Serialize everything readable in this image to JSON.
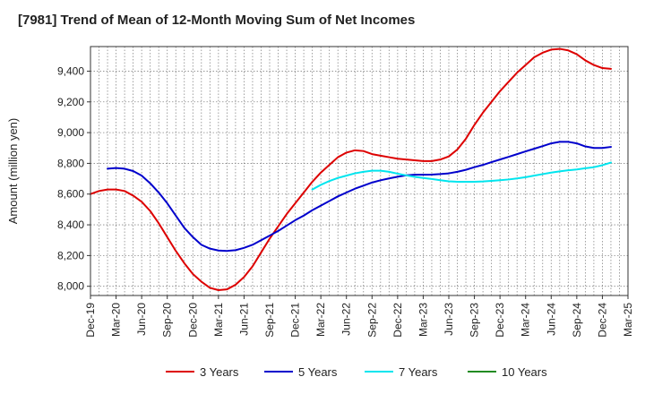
{
  "chart_data": {
    "type": "line",
    "title": "[7981]  Trend of Mean of 12-Month Moving Sum of Net Incomes",
    "ylabel": "Amount (million yen)",
    "xlabel": "",
    "ylim": [
      7940,
      9560
    ],
    "yticks": [
      8000,
      8200,
      8400,
      8600,
      8800,
      9000,
      9200,
      9400
    ],
    "ytick_labels": [
      "8,000",
      "8,200",
      "8,400",
      "8,600",
      "8,800",
      "9,000",
      "9,200",
      "9,400"
    ],
    "xticks": [
      "Dec-19",
      "Mar-20",
      "Jun-20",
      "Sep-20",
      "Dec-20",
      "Mar-21",
      "Jun-21",
      "Sep-21",
      "Dec-21",
      "Mar-22",
      "Jun-22",
      "Sep-22",
      "Dec-22",
      "Mar-23",
      "Jun-23",
      "Sep-23",
      "Dec-23",
      "Mar-24",
      "Jun-24",
      "Sep-24",
      "Dec-24",
      "Mar-25"
    ],
    "grid": true,
    "legend_position": "bottom",
    "series": [
      {
        "name": "3 Years",
        "color": "#dd0000",
        "points": [
          [
            "2019-12",
            8600
          ],
          [
            "2020-01",
            8620
          ],
          [
            "2020-02",
            8630
          ],
          [
            "2020-03",
            8630
          ],
          [
            "2020-04",
            8620
          ],
          [
            "2020-05",
            8590
          ],
          [
            "2020-06",
            8550
          ],
          [
            "2020-07",
            8490
          ],
          [
            "2020-08",
            8410
          ],
          [
            "2020-09",
            8320
          ],
          [
            "2020-10",
            8230
          ],
          [
            "2020-11",
            8150
          ],
          [
            "2020-12",
            8080
          ],
          [
            "2021-01",
            8030
          ],
          [
            "2021-02",
            7990
          ],
          [
            "2021-03",
            7975
          ],
          [
            "2021-04",
            7980
          ],
          [
            "2021-05",
            8010
          ],
          [
            "2021-06",
            8060
          ],
          [
            "2021-07",
            8130
          ],
          [
            "2021-08",
            8220
          ],
          [
            "2021-09",
            8310
          ],
          [
            "2021-10",
            8390
          ],
          [
            "2021-11",
            8470
          ],
          [
            "2021-12",
            8540
          ],
          [
            "2022-01",
            8610
          ],
          [
            "2022-02",
            8680
          ],
          [
            "2022-03",
            8740
          ],
          [
            "2022-04",
            8790
          ],
          [
            "2022-05",
            8840
          ],
          [
            "2022-06",
            8870
          ],
          [
            "2022-07",
            8885
          ],
          [
            "2022-08",
            8880
          ],
          [
            "2022-09",
            8860
          ],
          [
            "2022-10",
            8850
          ],
          [
            "2022-11",
            8840
          ],
          [
            "2022-12",
            8830
          ],
          [
            "2023-01",
            8825
          ],
          [
            "2023-02",
            8820
          ],
          [
            "2023-03",
            8815
          ],
          [
            "2023-04",
            8815
          ],
          [
            "2023-05",
            8825
          ],
          [
            "2023-06",
            8845
          ],
          [
            "2023-07",
            8890
          ],
          [
            "2023-08",
            8960
          ],
          [
            "2023-09",
            9050
          ],
          [
            "2023-10",
            9130
          ],
          [
            "2023-11",
            9200
          ],
          [
            "2023-12",
            9270
          ],
          [
            "2024-01",
            9330
          ],
          [
            "2024-02",
            9390
          ],
          [
            "2024-03",
            9440
          ],
          [
            "2024-04",
            9490
          ],
          [
            "2024-05",
            9520
          ],
          [
            "2024-06",
            9540
          ],
          [
            "2024-07",
            9545
          ],
          [
            "2024-08",
            9535
          ],
          [
            "2024-09",
            9510
          ],
          [
            "2024-10",
            9470
          ],
          [
            "2024-11",
            9440
          ],
          [
            "2024-12",
            9420
          ],
          [
            "2025-01",
            9415
          ]
        ]
      },
      {
        "name": "5 Years",
        "color": "#0000cc",
        "points": [
          [
            "2020-02",
            8765
          ],
          [
            "2020-03",
            8770
          ],
          [
            "2020-04",
            8765
          ],
          [
            "2020-05",
            8750
          ],
          [
            "2020-06",
            8720
          ],
          [
            "2020-07",
            8670
          ],
          [
            "2020-08",
            8610
          ],
          [
            "2020-09",
            8540
          ],
          [
            "2020-10",
            8460
          ],
          [
            "2020-11",
            8380
          ],
          [
            "2020-12",
            8320
          ],
          [
            "2021-01",
            8270
          ],
          [
            "2021-02",
            8245
          ],
          [
            "2021-03",
            8233
          ],
          [
            "2021-04",
            8230
          ],
          [
            "2021-05",
            8235
          ],
          [
            "2021-06",
            8250
          ],
          [
            "2021-07",
            8270
          ],
          [
            "2021-08",
            8300
          ],
          [
            "2021-09",
            8330
          ],
          [
            "2021-10",
            8360
          ],
          [
            "2021-11",
            8395
          ],
          [
            "2021-12",
            8430
          ],
          [
            "2022-01",
            8460
          ],
          [
            "2022-02",
            8495
          ],
          [
            "2022-03",
            8525
          ],
          [
            "2022-04",
            8555
          ],
          [
            "2022-05",
            8585
          ],
          [
            "2022-06",
            8610
          ],
          [
            "2022-07",
            8635
          ],
          [
            "2022-08",
            8655
          ],
          [
            "2022-09",
            8675
          ],
          [
            "2022-10",
            8690
          ],
          [
            "2022-11",
            8702
          ],
          [
            "2022-12",
            8713
          ],
          [
            "2023-01",
            8722
          ],
          [
            "2023-02",
            8726
          ],
          [
            "2023-03",
            8726
          ],
          [
            "2023-04",
            8727
          ],
          [
            "2023-05",
            8730
          ],
          [
            "2023-06",
            8735
          ],
          [
            "2023-07",
            8745
          ],
          [
            "2023-08",
            8758
          ],
          [
            "2023-09",
            8775
          ],
          [
            "2023-10",
            8790
          ],
          [
            "2023-11",
            8808
          ],
          [
            "2023-12",
            8825
          ],
          [
            "2024-01",
            8842
          ],
          [
            "2024-02",
            8860
          ],
          [
            "2024-03",
            8878
          ],
          [
            "2024-04",
            8895
          ],
          [
            "2024-05",
            8912
          ],
          [
            "2024-06",
            8930
          ],
          [
            "2024-07",
            8940
          ],
          [
            "2024-08",
            8940
          ],
          [
            "2024-09",
            8930
          ],
          [
            "2024-10",
            8910
          ],
          [
            "2024-11",
            8900
          ],
          [
            "2024-12",
            8900
          ],
          [
            "2025-01",
            8907
          ]
        ]
      },
      {
        "name": "7 Years",
        "color": "#00e5ee",
        "points": [
          [
            "2022-02",
            8630
          ],
          [
            "2022-03",
            8660
          ],
          [
            "2022-04",
            8685
          ],
          [
            "2022-05",
            8705
          ],
          [
            "2022-06",
            8720
          ],
          [
            "2022-07",
            8735
          ],
          [
            "2022-08",
            8745
          ],
          [
            "2022-09",
            8752
          ],
          [
            "2022-10",
            8752
          ],
          [
            "2022-11",
            8745
          ],
          [
            "2022-12",
            8733
          ],
          [
            "2023-01",
            8722
          ],
          [
            "2023-02",
            8712
          ],
          [
            "2023-03",
            8705
          ],
          [
            "2023-04",
            8698
          ],
          [
            "2023-05",
            8690
          ],
          [
            "2023-06",
            8683
          ],
          [
            "2023-07",
            8680
          ],
          [
            "2023-08",
            8680
          ],
          [
            "2023-09",
            8680
          ],
          [
            "2023-10",
            8682
          ],
          [
            "2023-11",
            8686
          ],
          [
            "2023-12",
            8690
          ],
          [
            "2024-01",
            8695
          ],
          [
            "2024-02",
            8702
          ],
          [
            "2024-03",
            8710
          ],
          [
            "2024-04",
            8720
          ],
          [
            "2024-05",
            8730
          ],
          [
            "2024-06",
            8740
          ],
          [
            "2024-07",
            8748
          ],
          [
            "2024-08",
            8755
          ],
          [
            "2024-09",
            8760
          ],
          [
            "2024-10",
            8768
          ],
          [
            "2024-11",
            8775
          ],
          [
            "2024-12",
            8788
          ],
          [
            "2025-01",
            8805
          ]
        ]
      },
      {
        "name": "10 Years",
        "color": "#228b22",
        "points": []
      }
    ]
  }
}
